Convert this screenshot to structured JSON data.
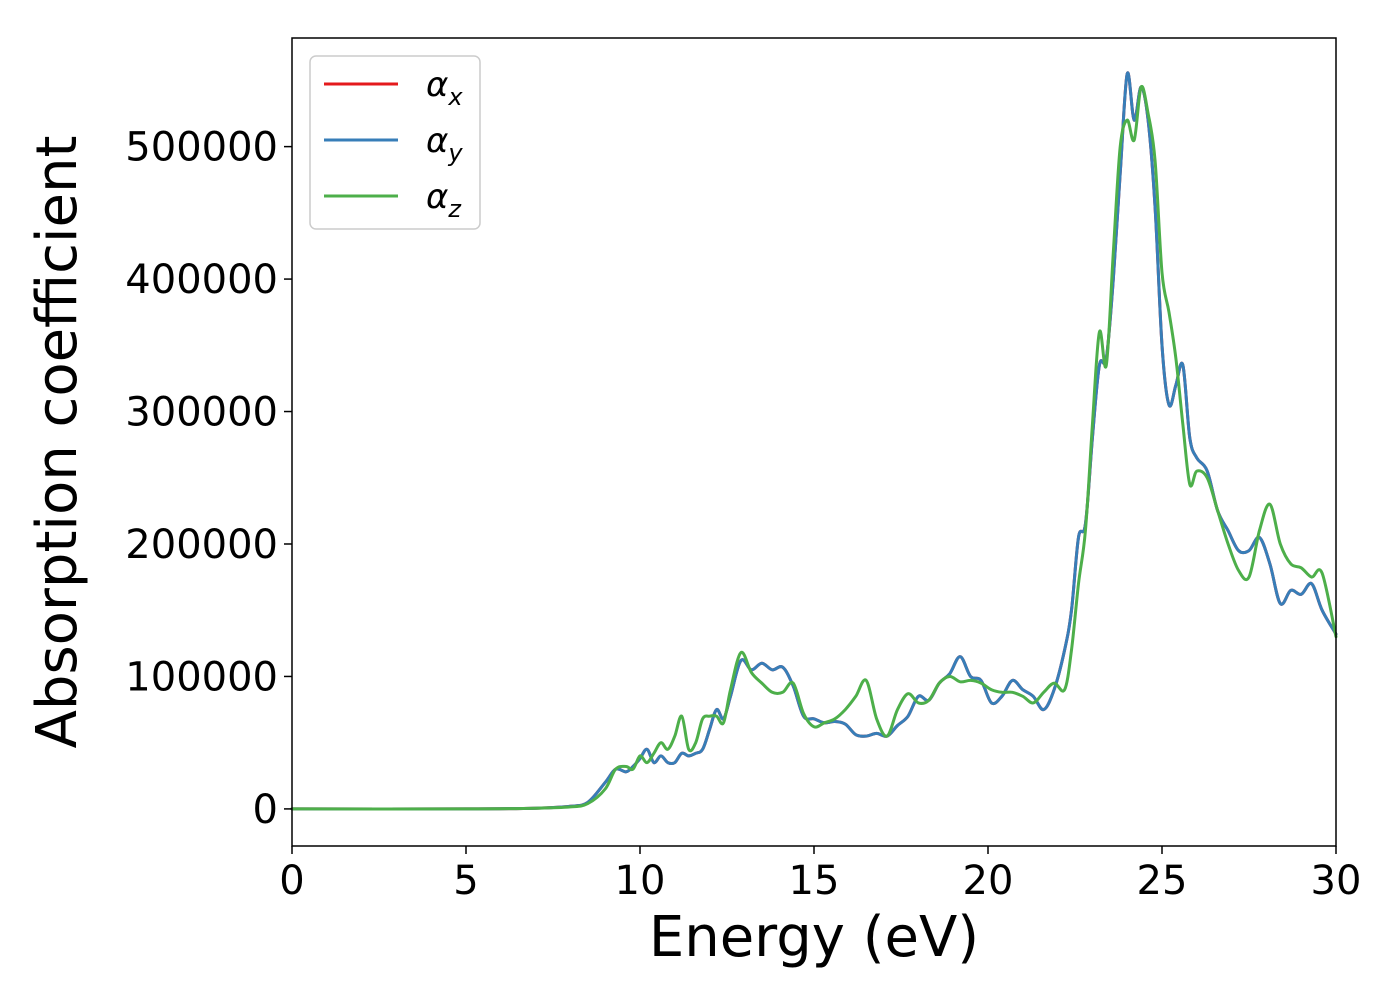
{
  "chart_data": {
    "type": "line",
    "xlabel": "Energy (eV)",
    "ylabel": "Absorption coefficient",
    "xlim": [
      0,
      30
    ],
    "ylim": [
      -28000,
      582000
    ],
    "xticks": [
      0,
      5,
      10,
      15,
      20,
      25,
      30
    ],
    "yticks": [
      0,
      100000,
      200000,
      300000,
      400000,
      500000
    ],
    "xtick_labels": [
      "0",
      "5",
      "10",
      "15",
      "20",
      "25",
      "30"
    ],
    "ytick_labels": [
      "0",
      "100000",
      "200000",
      "300000",
      "400000",
      "500000"
    ],
    "legend": {
      "position": "top-left"
    },
    "grid": false,
    "series": [
      {
        "name": "α",
        "subscript": "x",
        "color": "#e41a1c",
        "x": [
          0,
          5,
          7,
          8,
          8.5,
          9,
          9.3,
          9.6,
          9.8,
          10,
          10.2,
          10.4,
          10.6,
          10.8,
          11,
          11.2,
          11.4,
          11.6,
          11.8,
          12,
          12.2,
          12.4,
          12.6,
          12.9,
          13.2,
          13.5,
          13.8,
          14.1,
          14.4,
          14.7,
          15,
          15.3,
          15.6,
          15.9,
          16.2,
          16.5,
          16.8,
          17.1,
          17.4,
          17.7,
          18,
          18.3,
          18.6,
          18.9,
          19.2,
          19.5,
          19.8,
          20.1,
          20.4,
          20.7,
          21,
          21.3,
          21.6,
          21.9,
          22.2,
          22.4,
          22.6,
          22.8,
          23,
          23.2,
          23.4,
          23.6,
          23.8,
          24,
          24.2,
          24.4,
          24.6,
          24.8,
          25,
          25.2,
          25.4,
          25.6,
          25.8,
          26,
          26.3,
          26.6,
          26.9,
          27.2,
          27.5,
          27.8,
          28.1,
          28.4,
          28.7,
          29,
          29.3,
          29.6,
          30
        ],
        "values": [
          0,
          0,
          500,
          2000,
          5000,
          20000,
          30000,
          28000,
          32000,
          38000,
          45000,
          35000,
          40000,
          35000,
          35000,
          42000,
          40000,
          42000,
          45000,
          60000,
          75000,
          68000,
          85000,
          112000,
          105000,
          110000,
          105000,
          107000,
          93000,
          70000,
          68000,
          65000,
          66000,
          64000,
          56000,
          55000,
          57000,
          55000,
          63000,
          70000,
          85000,
          82000,
          95000,
          102000,
          115000,
          100000,
          97000,
          80000,
          85000,
          97000,
          90000,
          85000,
          75000,
          90000,
          120000,
          150000,
          205000,
          215000,
          280000,
          335000,
          340000,
          400000,
          480000,
          555000,
          520000,
          545000,
          520000,
          455000,
          350000,
          305000,
          320000,
          335000,
          280000,
          265000,
          255000,
          225000,
          210000,
          195000,
          195000,
          205000,
          185000,
          155000,
          165000,
          162000,
          170000,
          150000,
          132000
        ]
      },
      {
        "name": "α",
        "subscript": "y",
        "color": "#377eb8",
        "x": [
          0,
          5,
          7,
          8,
          8.5,
          9,
          9.3,
          9.6,
          9.8,
          10,
          10.2,
          10.4,
          10.6,
          10.8,
          11,
          11.2,
          11.4,
          11.6,
          11.8,
          12,
          12.2,
          12.4,
          12.6,
          12.9,
          13.2,
          13.5,
          13.8,
          14.1,
          14.4,
          14.7,
          15,
          15.3,
          15.6,
          15.9,
          16.2,
          16.5,
          16.8,
          17.1,
          17.4,
          17.7,
          18,
          18.3,
          18.6,
          18.9,
          19.2,
          19.5,
          19.8,
          20.1,
          20.4,
          20.7,
          21,
          21.3,
          21.6,
          21.9,
          22.2,
          22.4,
          22.6,
          22.8,
          23,
          23.2,
          23.4,
          23.6,
          23.8,
          24,
          24.2,
          24.4,
          24.6,
          24.8,
          25,
          25.2,
          25.4,
          25.6,
          25.8,
          26,
          26.3,
          26.6,
          26.9,
          27.2,
          27.5,
          27.8,
          28.1,
          28.4,
          28.7,
          29,
          29.3,
          29.6,
          30
        ],
        "values": [
          0,
          0,
          500,
          2000,
          5000,
          20000,
          30000,
          28000,
          32000,
          38000,
          45000,
          35000,
          40000,
          35000,
          35000,
          42000,
          40000,
          42000,
          45000,
          60000,
          75000,
          68000,
          85000,
          112000,
          105000,
          110000,
          105000,
          107000,
          93000,
          70000,
          68000,
          65000,
          66000,
          64000,
          56000,
          55000,
          57000,
          55000,
          63000,
          70000,
          85000,
          82000,
          95000,
          102000,
          115000,
          100000,
          97000,
          80000,
          85000,
          97000,
          90000,
          85000,
          75000,
          90000,
          120000,
          150000,
          205000,
          215000,
          280000,
          335000,
          340000,
          400000,
          480000,
          555000,
          520000,
          545000,
          520000,
          455000,
          350000,
          305000,
          320000,
          335000,
          280000,
          265000,
          255000,
          225000,
          210000,
          195000,
          195000,
          205000,
          185000,
          155000,
          165000,
          162000,
          170000,
          150000,
          132000
        ]
      },
      {
        "name": "α",
        "subscript": "z",
        "color": "#4daf4a",
        "x": [
          0,
          5,
          7,
          8,
          8.5,
          9,
          9.3,
          9.6,
          9.8,
          10,
          10.2,
          10.4,
          10.6,
          10.8,
          11,
          11.2,
          11.4,
          11.6,
          11.8,
          12,
          12.2,
          12.4,
          12.6,
          12.9,
          13.2,
          13.5,
          13.8,
          14.1,
          14.4,
          14.7,
          15,
          15.3,
          15.6,
          15.9,
          16.2,
          16.5,
          16.8,
          17.1,
          17.4,
          17.7,
          18,
          18.3,
          18.6,
          18.9,
          19.2,
          19.5,
          19.8,
          20.1,
          20.4,
          20.7,
          21,
          21.3,
          21.6,
          21.9,
          22.2,
          22.4,
          22.6,
          22.8,
          23,
          23.2,
          23.4,
          23.6,
          23.8,
          24,
          24.2,
          24.4,
          24.6,
          24.8,
          25,
          25.2,
          25.4,
          25.6,
          25.8,
          26,
          26.3,
          26.6,
          26.9,
          27.2,
          27.5,
          27.8,
          28.1,
          28.4,
          28.7,
          29,
          29.3,
          29.6,
          30
        ],
        "values": [
          0,
          0,
          500,
          1500,
          4000,
          15000,
          30000,
          32000,
          30000,
          40000,
          35000,
          42000,
          50000,
          45000,
          55000,
          70000,
          45000,
          50000,
          68000,
          70000,
          70000,
          65000,
          90000,
          118000,
          103000,
          95000,
          88000,
          88000,
          95000,
          72000,
          62000,
          65000,
          68000,
          75000,
          85000,
          97000,
          68000,
          55000,
          75000,
          87000,
          80000,
          82000,
          95000,
          100000,
          96000,
          97000,
          95000,
          90000,
          88000,
          88000,
          85000,
          80000,
          88000,
          95000,
          90000,
          120000,
          170000,
          210000,
          290000,
          360000,
          335000,
          420000,
          500000,
          520000,
          505000,
          545000,
          525000,
          490000,
          405000,
          375000,
          340000,
          290000,
          245000,
          255000,
          250000,
          225000,
          200000,
          180000,
          175000,
          210000,
          230000,
          200000,
          185000,
          182000,
          175000,
          178000,
          130000
        ]
      }
    ]
  }
}
